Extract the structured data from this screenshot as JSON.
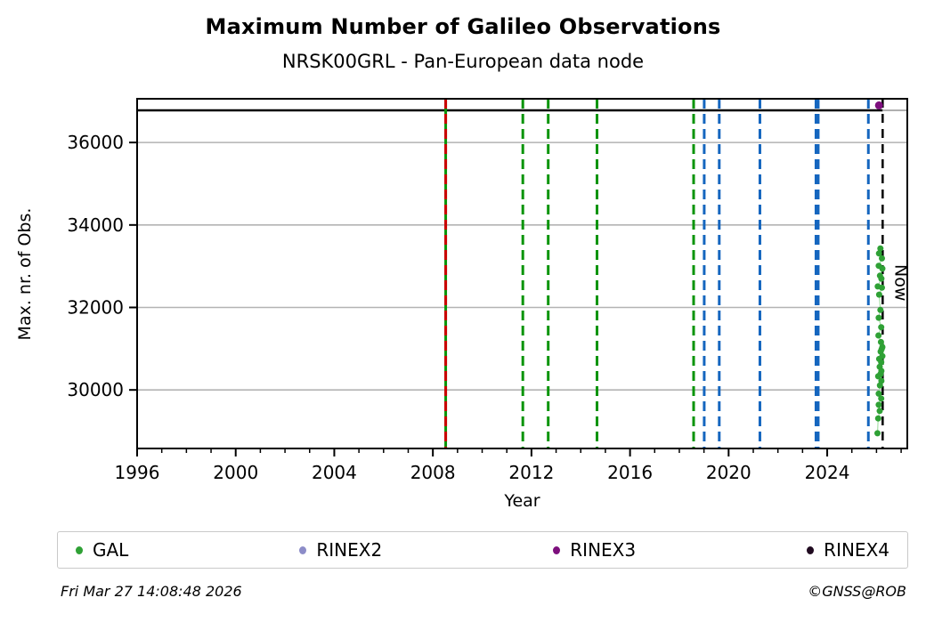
{
  "title": "Maximum Number of Galileo Observations",
  "subtitle": "NRSK00GRL - Pan-European data node",
  "footer": {
    "timestamp": "Fri Mar 27 14:08:48 2026",
    "credit": "©GNSS@ROB"
  },
  "legend": [
    {
      "label": "GAL",
      "color": "#2fa135"
    },
    {
      "label": "RINEX2",
      "color": "#8c8cc8"
    },
    {
      "label": "RINEX3",
      "color": "#7d0f7d"
    },
    {
      "label": "RINEX4",
      "color": "#200a20"
    }
  ],
  "chart_data": {
    "type": "scatter",
    "title": "Maximum Number of Galileo Observations",
    "subtitle": "NRSK00GRL - Pan-European data node",
    "xlabel": "Year",
    "ylabel": "Max. nr. of Obs.",
    "xlim": [
      1996,
      2027.25
    ],
    "ylim": [
      28580,
      37060
    ],
    "x_major_ticks": [
      1996,
      2000,
      2004,
      2008,
      2012,
      2016,
      2020,
      2024
    ],
    "x_minor_tick_step": 1,
    "y_ticks": [
      30000,
      32000,
      34000,
      36000
    ],
    "grid": "horizontal",
    "legend_position": "bottom",
    "max_obs_line": {
      "value": 36780,
      "color": "#000000",
      "after_now_color": "#b0b0b0",
      "width": 2.5
    },
    "now": {
      "label": "Now",
      "year": 2026.25,
      "label_value": 32600,
      "color": "#000000"
    },
    "event_lines": [
      {
        "year": 2008.52,
        "color": "#089408",
        "style": "solid",
        "width": 3
      },
      {
        "year": 2008.52,
        "color": "#cc0000",
        "style": "dashed",
        "width": 3
      },
      {
        "year": 2011.65,
        "color": "#089408",
        "style": "dashed",
        "width": 3
      },
      {
        "year": 2012.68,
        "color": "#089408",
        "style": "dashed",
        "width": 3
      },
      {
        "year": 2014.66,
        "color": "#089408",
        "style": "dashed",
        "width": 3
      },
      {
        "year": 2018.58,
        "color": "#089408",
        "style": "dashed",
        "width": 3
      },
      {
        "year": 2019.01,
        "color": "#1566bf",
        "style": "dashed",
        "width": 3
      },
      {
        "year": 2019.62,
        "color": "#1566bf",
        "style": "dashed",
        "width": 3
      },
      {
        "year": 2021.27,
        "color": "#1566bf",
        "style": "dashed",
        "width": 3
      },
      {
        "year": 2023.59,
        "color": "#1566bf",
        "style": "dashed",
        "width": 5.5
      },
      {
        "year": 2025.67,
        "color": "#1566bf",
        "style": "dashed",
        "width": 3
      }
    ],
    "series": [
      {
        "name": "GAL",
        "color": "#2fa135",
        "marker_r": 3.5,
        "connect_color": "#a8dfa8",
        "points": [
          [
            2026.16,
            33430
          ],
          [
            2026.1,
            33310
          ],
          [
            2026.22,
            33190
          ],
          [
            2026.09,
            33010
          ],
          [
            2026.24,
            32940
          ],
          [
            2026.14,
            32770
          ],
          [
            2026.2,
            32700
          ],
          [
            2026.05,
            32510
          ],
          [
            2026.22,
            32480
          ],
          [
            2026.11,
            32310
          ],
          [
            2026.16,
            31940
          ],
          [
            2026.09,
            31750
          ],
          [
            2026.19,
            31520
          ],
          [
            2026.08,
            31320
          ],
          [
            2026.18,
            31160
          ],
          [
            2026.24,
            31040
          ],
          [
            2026.21,
            30990
          ],
          [
            2026.17,
            30930
          ],
          [
            2026.24,
            30820
          ],
          [
            2026.11,
            30750
          ],
          [
            2026.19,
            30670
          ],
          [
            2026.13,
            30560
          ],
          [
            2026.2,
            30460
          ],
          [
            2026.16,
            30380
          ],
          [
            2026.07,
            30330
          ],
          [
            2026.2,
            30220
          ],
          [
            2026.14,
            30110
          ],
          [
            2026.09,
            29910
          ],
          [
            2026.19,
            29790
          ],
          [
            2026.09,
            29640
          ],
          [
            2026.13,
            29490
          ],
          [
            2026.07,
            29310
          ],
          [
            2026.04,
            28950
          ]
        ]
      },
      {
        "name": "RINEX2",
        "color": "#8c8cc8",
        "marker_r": 4,
        "points": []
      },
      {
        "name": "RINEX3",
        "color": "#7d0f7d",
        "marker_r": 4.5,
        "points": [
          [
            2026.1,
            36900
          ]
        ]
      },
      {
        "name": "RINEX4",
        "color": "#200a20",
        "marker_r": 4,
        "points": []
      }
    ]
  }
}
